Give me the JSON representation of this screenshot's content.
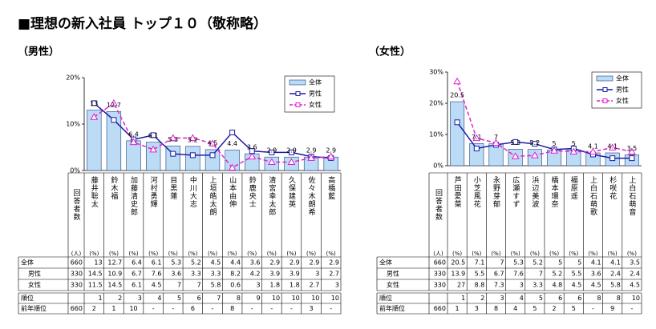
{
  "title": "■理想の新入社員 トップ１０（敬称略）",
  "chart_data": [
    {
      "type": "bar",
      "subtitle": "（男性）",
      "categories": [
        "藤井聡太",
        "鈴木福",
        "加藤清史郎",
        "河村勇輝",
        "目黒蓮",
        "中川大志",
        "上垣皓太朗",
        "山本由伸",
        "鈴鹿央士",
        "清宮幸太郎",
        "久保建英",
        "佐々木朗希",
        "高橋藍"
      ],
      "series": [
        {
          "name": "全体",
          "color": "#bcdcf5",
          "count": 660,
          "values": [
            13.0,
            12.7,
            6.4,
            6.1,
            5.3,
            5.2,
            4.5,
            4.4,
            3.6,
            2.9,
            2.9,
            2.9,
            2.9
          ]
        },
        {
          "name": "男性",
          "color": "#1c1ca8",
          "count": 330,
          "values": [
            14.5,
            10.9,
            6.7,
            7.6,
            3.6,
            3.3,
            3.3,
            8.2,
            4.2,
            3.9,
            3.9,
            3.0,
            2.7
          ]
        },
        {
          "name": "女性",
          "color": "#e020d0",
          "count": 330,
          "values": [
            11.5,
            14.5,
            6.1,
            4.5,
            7.0,
            7.0,
            5.8,
            0.6,
            3.0,
            1.8,
            1.8,
            2.7,
            3.0
          ]
        }
      ],
      "ylim": [
        0,
        20
      ],
      "yticks": [
        {
          "value": 0,
          "label": "0%"
        },
        {
          "value": 10,
          "label": "10%"
        },
        {
          "value": 20,
          "label": "20%"
        }
      ],
      "respondents_header": "回答者数",
      "count_unit": "(人)",
      "pct_unit": "(%)",
      "rank_label": "順位",
      "ranks": [
        1,
        2,
        3,
        4,
        5,
        6,
        7,
        8,
        9,
        10,
        10,
        10,
        10
      ],
      "prev_rank_label": "前年順位",
      "prev_rank_count": 660,
      "prev_ranks": [
        "2",
        "1",
        "10",
        "-",
        "-",
        "6",
        "-",
        "8",
        "-",
        "-",
        "-",
        "3",
        "-"
      ]
    },
    {
      "type": "bar",
      "subtitle": "（女性）",
      "categories": [
        "芦田愛菜",
        "小芝風花",
        "永野芽郁",
        "広瀬すず",
        "浜辺美波",
        "橋本環奈",
        "福原遥",
        "上白石萌歌",
        "杉咲花",
        "上白石萌音"
      ],
      "series": [
        {
          "name": "全体",
          "color": "#bcdcf5",
          "count": 660,
          "values": [
            20.5,
            7.1,
            7.0,
            5.3,
            5.2,
            5.0,
            5.0,
            4.1,
            4.1,
            3.5
          ]
        },
        {
          "name": "男性",
          "color": "#1c1ca8",
          "count": 330,
          "values": [
            13.9,
            5.5,
            6.7,
            7.6,
            7.0,
            5.2,
            5.5,
            3.6,
            2.4,
            2.4
          ]
        },
        {
          "name": "女性",
          "color": "#e020d0",
          "count": 330,
          "values": [
            27.0,
            8.8,
            7.3,
            3.0,
            3.3,
            4.8,
            4.5,
            4.5,
            5.8,
            4.5
          ]
        }
      ],
      "ylim": [
        0,
        30
      ],
      "yticks": [
        {
          "value": 0,
          "label": "0%"
        },
        {
          "value": 10,
          "label": "10%"
        },
        {
          "value": 20,
          "label": "20%"
        },
        {
          "value": 30,
          "label": "30%"
        }
      ],
      "respondents_header": "回答者数",
      "count_unit": "(人)",
      "pct_unit": "(%)",
      "rank_label": "順位",
      "ranks": [
        1,
        2,
        3,
        4,
        5,
        6,
        6,
        8,
        8,
        10
      ],
      "prev_rank_label": "前年順位",
      "prev_rank_count": 660,
      "prev_ranks": [
        "1",
        "3",
        "8",
        "4",
        "5",
        "2",
        "5",
        "-",
        "9",
        "-"
      ]
    }
  ]
}
